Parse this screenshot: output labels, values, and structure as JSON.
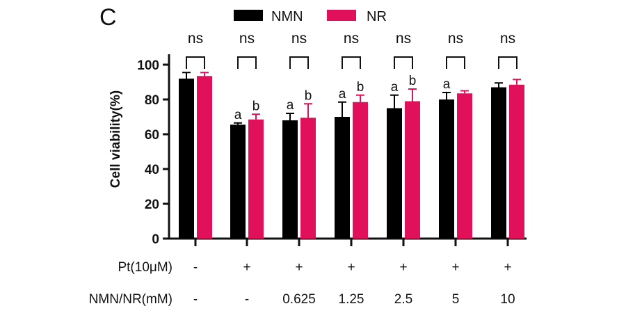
{
  "panel_label": "C",
  "colors": {
    "NMN": "#000000",
    "NR": "#e0105a",
    "axis": "#111111"
  },
  "chart_data": {
    "type": "bar",
    "ylabel": "Cell viability(%)",
    "ylim": [
      0,
      110
    ],
    "yticks": [
      0,
      20,
      40,
      60,
      80,
      100
    ],
    "legend": {
      "placement": "top-center"
    },
    "series": [
      {
        "name": "NMN",
        "values": [
          92,
          65.5,
          68,
          70,
          75,
          80,
          87
        ],
        "errors": [
          3.5,
          1,
          4,
          8.5,
          7.5,
          4,
          2.5
        ]
      },
      {
        "name": "NR",
        "values": [
          93.5,
          68.5,
          69.5,
          78.5,
          79,
          83.5,
          88.5
        ],
        "errors": [
          2,
          3,
          8,
          4,
          7,
          1.5,
          3
        ]
      }
    ],
    "significance": [
      "ns",
      "ns",
      "ns",
      "ns",
      "ns",
      "ns",
      "ns"
    ],
    "letters": [
      [
        "",
        ""
      ],
      [
        "a",
        "b"
      ],
      [
        "a",
        "b"
      ],
      [
        "a",
        "b"
      ],
      [
        "a",
        "b"
      ],
      [
        "a",
        ""
      ],
      [
        "",
        ""
      ]
    ],
    "table_rows": [
      {
        "label": "Pt(10μM)",
        "values": [
          "-",
          "+",
          "+",
          "+",
          "+",
          "+",
          "+"
        ]
      },
      {
        "label": "NMN/NR(mM)",
        "values": [
          "-",
          "-",
          "0.625",
          "1.25",
          "2.5",
          "5",
          "10"
        ]
      }
    ]
  }
}
